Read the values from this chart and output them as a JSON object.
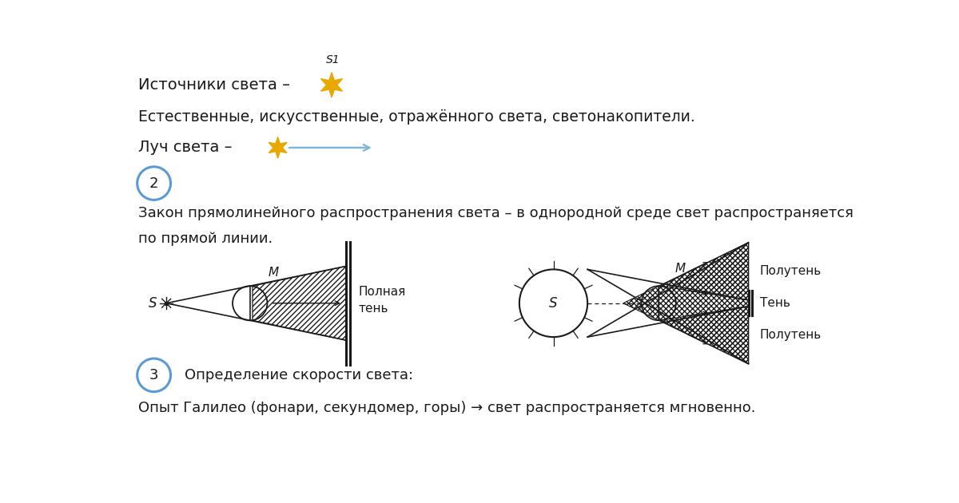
{
  "bg_color": "#ffffff",
  "text_color": "#1a1a1a",
  "line1": "Источники света –",
  "s1_label": "S1",
  "line2": "Естественные, искусственные, отражённого света, светонакопители.",
  "line3": "Луч света –",
  "section2_num": "2",
  "section2_text1": "Закон прямолинейного распространения света – в однородной среде свет распространяется",
  "section2_text2": "по прямой линии.",
  "label_M1": "M",
  "label_S1": "S",
  "label_polnaya_ten": "Полная\nтень",
  "label_M2": "M",
  "label_S2": "S",
  "label_poluteny": "Полутень",
  "label_ten": "Тень",
  "label_poluteny2": "Полутень",
  "section3_num": "3",
  "section3_text": "Определение скорости света:",
  "line_bottom": "Опыт Галилео (фонари, секундомер, горы) → свет распространяется мгновенно.",
  "star_color": "#e8a800",
  "circle_color": "#5b9bd5",
  "arrow_color": "#7fb5d5",
  "diagram_line_color": "#1a1a1a"
}
